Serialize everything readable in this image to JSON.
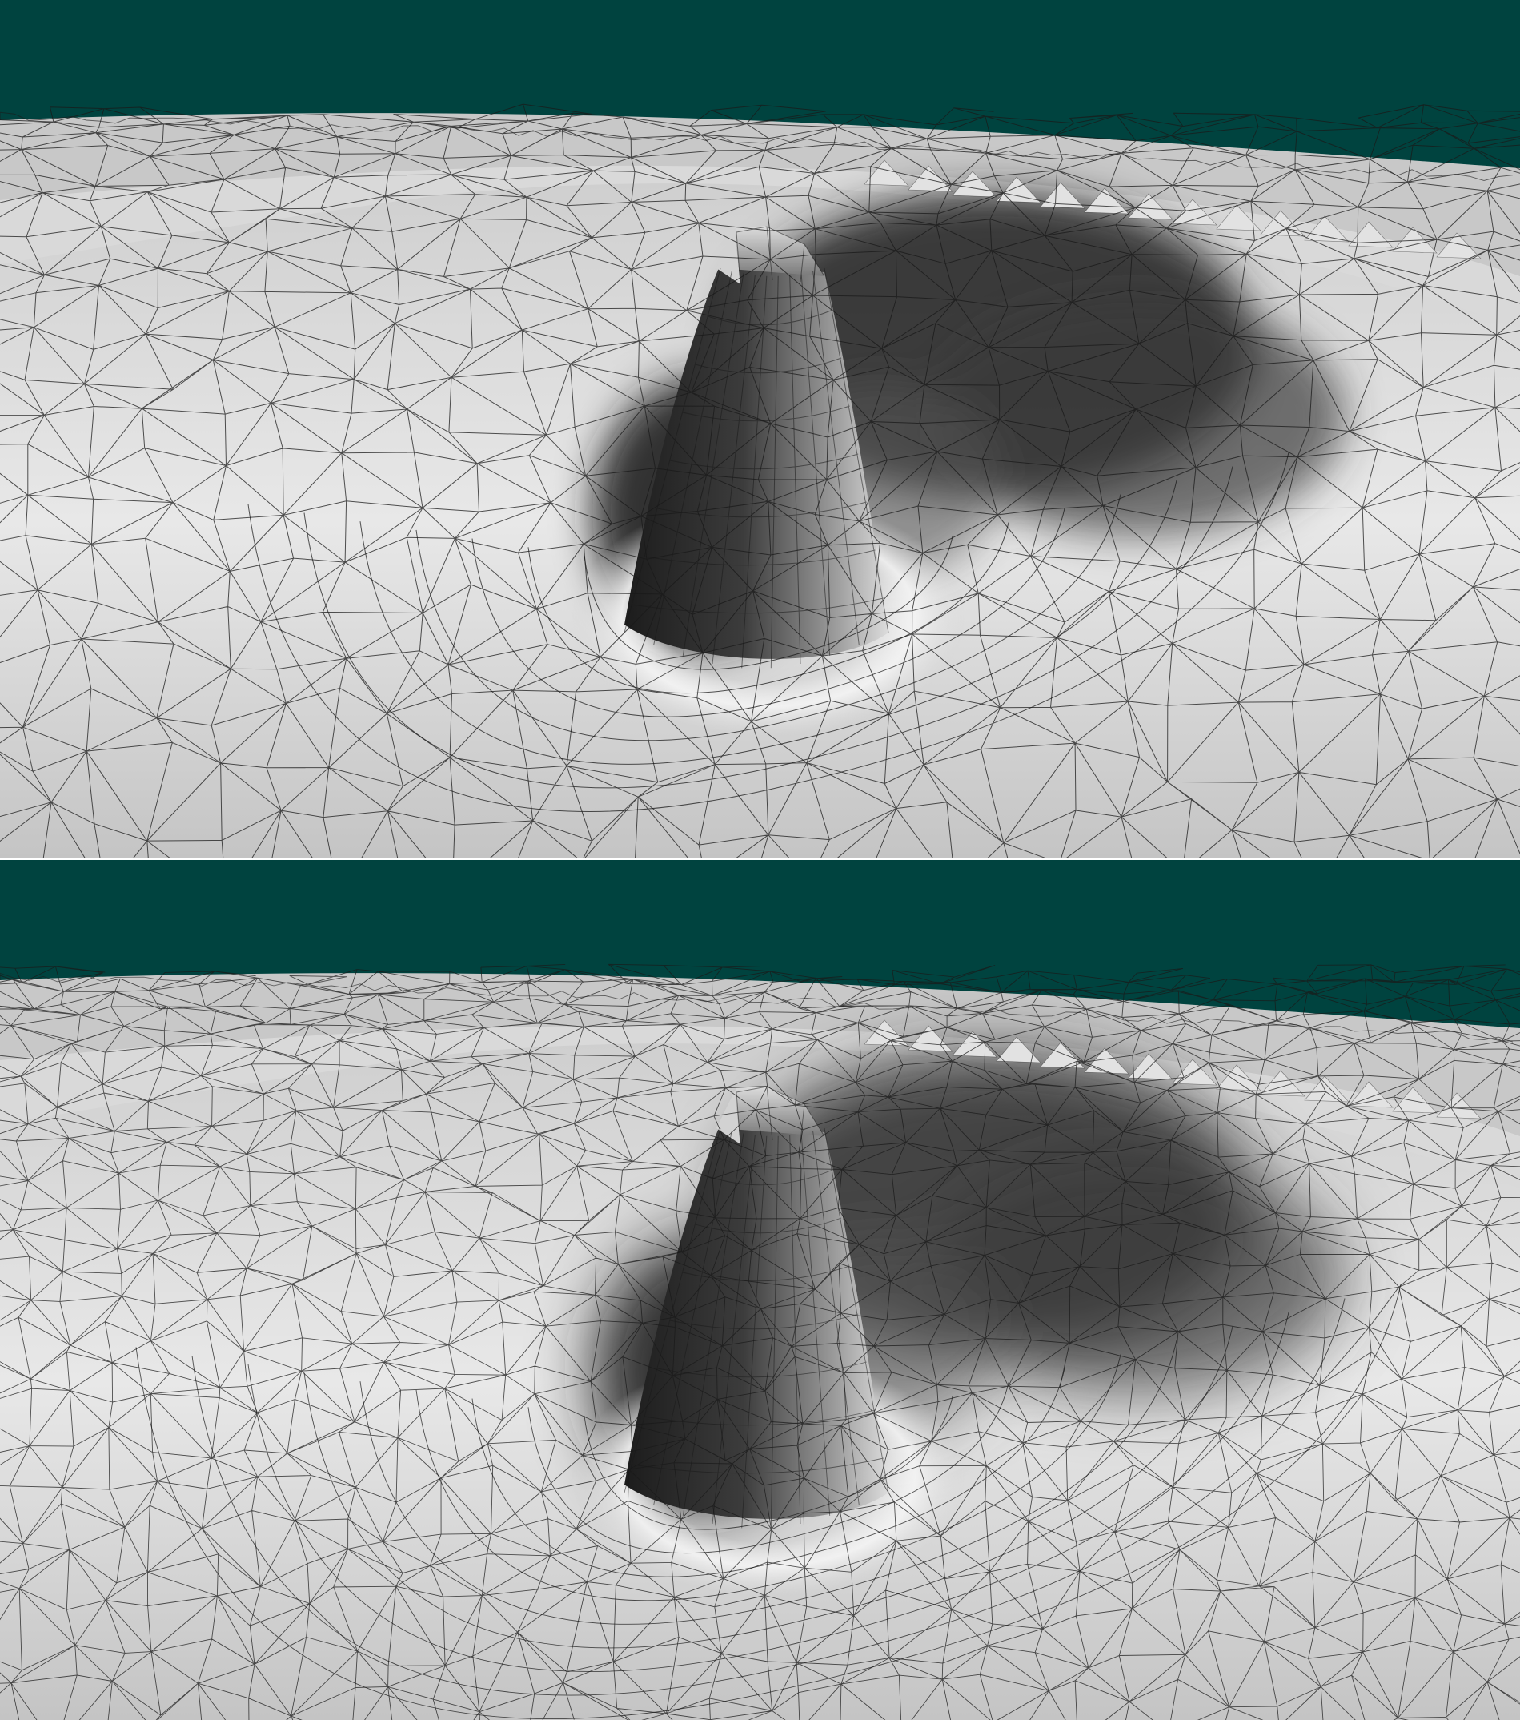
{
  "panels": [
    {
      "id": "top",
      "shading": "flat",
      "mesh_density": "coarse",
      "description_tag": "mesh-render-flat"
    },
    {
      "id": "bottom",
      "shading": "smooth",
      "mesh_density": "fine",
      "description_tag": "mesh-render-smooth"
    }
  ],
  "colors": {
    "sky": "#00433f",
    "surface_light": "#e8e8e8",
    "surface_mid": "#9a9a9a",
    "surface_dark": "#222222",
    "wire": "#1a1a1a",
    "separator": "#ffffff"
  }
}
